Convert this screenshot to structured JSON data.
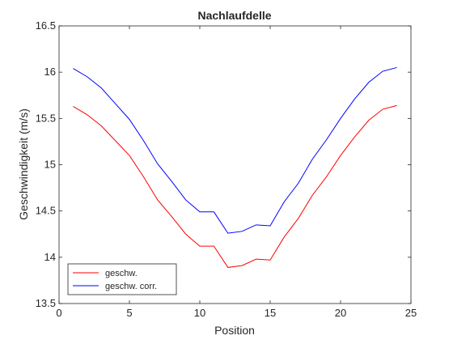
{
  "chart_data": {
    "type": "line",
    "title": "Nachlaufdelle",
    "xlabel": "Position",
    "ylabel": "Geschwindigkeit (m/s)",
    "xlim": [
      0,
      25
    ],
    "ylim": [
      13.5,
      16.5
    ],
    "x_ticks": [
      "0",
      "5",
      "10",
      "15",
      "20",
      "25"
    ],
    "y_ticks": [
      "13.5",
      "14",
      "14.5",
      "15",
      "15.5",
      "16",
      "16.5"
    ],
    "grid": false,
    "legend_position": "bottom-left",
    "x": [
      1,
      2,
      3,
      4,
      5,
      6,
      7,
      8,
      9,
      10,
      11,
      12,
      13,
      14,
      15,
      16,
      17,
      18,
      19,
      20,
      21,
      22,
      23,
      24
    ],
    "series": [
      {
        "name": "geschw.",
        "color": "#ff0000",
        "values": [
          15.63,
          15.54,
          15.42,
          15.26,
          15.1,
          14.87,
          14.62,
          14.44,
          14.25,
          14.12,
          14.12,
          13.89,
          13.91,
          13.98,
          13.97,
          14.22,
          14.42,
          14.67,
          14.87,
          15.1,
          15.3,
          15.48,
          15.6,
          15.64
        ]
      },
      {
        "name": "geschw. corr.",
        "color": "#0000ff",
        "values": [
          16.04,
          15.95,
          15.83,
          15.66,
          15.49,
          15.26,
          15.01,
          14.82,
          14.62,
          14.49,
          14.49,
          14.26,
          14.28,
          14.35,
          14.34,
          14.6,
          14.8,
          15.06,
          15.27,
          15.5,
          15.71,
          15.89,
          16.01,
          16.05
        ]
      }
    ]
  }
}
